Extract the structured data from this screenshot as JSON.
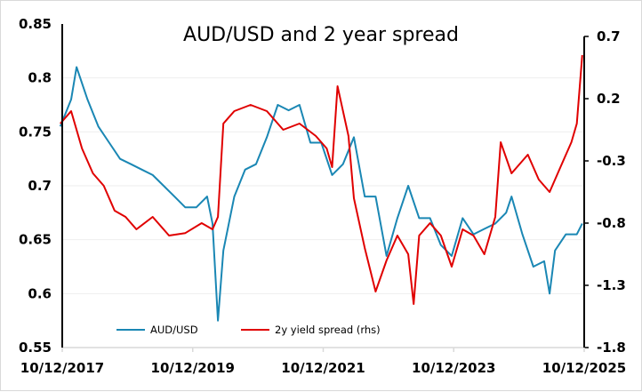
{
  "chart_data": {
    "type": "line",
    "title": "AUD/USD and 2 year spread",
    "xlabel": "",
    "ylabel": "",
    "x_ticks": [
      "10/12/2017",
      "10/12/2019",
      "10/12/2021",
      "10/12/2023",
      "10/12/2025"
    ],
    "xlim": [
      "2017-10-12",
      "2025-10-12"
    ],
    "y_left": {
      "ylim": [
        0.55,
        0.85
      ],
      "ticks": [
        "0.85",
        "0.8",
        "0.75",
        "0.7",
        "0.65",
        "0.6",
        "0.55"
      ],
      "grid": true
    },
    "y_right": {
      "ylim": [
        -1.8,
        0.7
      ],
      "ticks": [
        "0.7",
        "0.2",
        "-0.3",
        "-0.8",
        "-1.3",
        "-1.8"
      ]
    },
    "legend_position": "bottom-left",
    "series": [
      {
        "name": "AUD/USD",
        "axis": "left",
        "color": "#1a87b4",
        "x": [
          "2017-10",
          "2017-12",
          "2018-01",
          "2018-03",
          "2018-05",
          "2018-07",
          "2018-09",
          "2018-11",
          "2019-01",
          "2019-03",
          "2019-05",
          "2019-07",
          "2019-09",
          "2019-11",
          "2020-01",
          "2020-02",
          "2020-03",
          "2020-04",
          "2020-06",
          "2020-08",
          "2020-10",
          "2020-12",
          "2021-02",
          "2021-04",
          "2021-06",
          "2021-08",
          "2021-10",
          "2021-12",
          "2022-02",
          "2022-04",
          "2022-06",
          "2022-08",
          "2022-10",
          "2022-12",
          "2023-02",
          "2023-04",
          "2023-06",
          "2023-08",
          "2023-10",
          "2023-12",
          "2024-02",
          "2024-04",
          "2024-06",
          "2024-08",
          "2024-09",
          "2024-11",
          "2025-01",
          "2025-03",
          "2025-04",
          "2025-05",
          "2025-07",
          "2025-09",
          "2025-10"
        ],
        "y": [
          0.755,
          0.78,
          0.81,
          0.78,
          0.755,
          0.74,
          0.725,
          0.72,
          0.715,
          0.71,
          0.7,
          0.69,
          0.68,
          0.68,
          0.69,
          0.665,
          0.575,
          0.64,
          0.69,
          0.715,
          0.72,
          0.745,
          0.775,
          0.77,
          0.775,
          0.74,
          0.74,
          0.71,
          0.72,
          0.745,
          0.69,
          0.69,
          0.635,
          0.67,
          0.7,
          0.67,
          0.67,
          0.645,
          0.635,
          0.67,
          0.655,
          0.66,
          0.665,
          0.675,
          0.69,
          0.655,
          0.625,
          0.63,
          0.6,
          0.64,
          0.655,
          0.655,
          0.665
        ]
      },
      {
        "name": "2y yield spread (rhs)",
        "axis": "right",
        "color": "#e00000",
        "x": [
          "2017-10",
          "2017-12",
          "2018-02",
          "2018-04",
          "2018-06",
          "2018-08",
          "2018-10",
          "2018-12",
          "2019-03",
          "2019-06",
          "2019-09",
          "2019-12",
          "2020-02",
          "2020-03",
          "2020-04",
          "2020-06",
          "2020-09",
          "2020-12",
          "2021-03",
          "2021-06",
          "2021-09",
          "2021-11",
          "2021-12",
          "2022-01",
          "2022-03",
          "2022-04",
          "2022-06",
          "2022-08",
          "2022-10",
          "2022-12",
          "2023-02",
          "2023-03",
          "2023-04",
          "2023-06",
          "2023-08",
          "2023-10",
          "2023-12",
          "2024-02",
          "2024-04",
          "2024-06",
          "2024-07",
          "2024-09",
          "2024-12",
          "2025-02",
          "2025-04",
          "2025-06",
          "2025-08",
          "2025-09",
          "2025-10"
        ],
        "y": [
          0.0,
          0.1,
          -0.2,
          -0.4,
          -0.5,
          -0.7,
          -0.75,
          -0.85,
          -0.75,
          -0.9,
          -0.88,
          -0.8,
          -0.85,
          -0.75,
          0.0,
          0.1,
          0.15,
          0.1,
          -0.05,
          0.0,
          -0.1,
          -0.2,
          -0.35,
          0.3,
          -0.1,
          -0.6,
          -1.0,
          -1.35,
          -1.1,
          -0.9,
          -1.05,
          -1.45,
          -0.9,
          -0.8,
          -0.9,
          -1.15,
          -0.85,
          -0.9,
          -1.05,
          -0.75,
          -0.15,
          -0.4,
          -0.25,
          -0.45,
          -0.55,
          -0.35,
          -0.15,
          0.0,
          0.55
        ]
      }
    ]
  }
}
